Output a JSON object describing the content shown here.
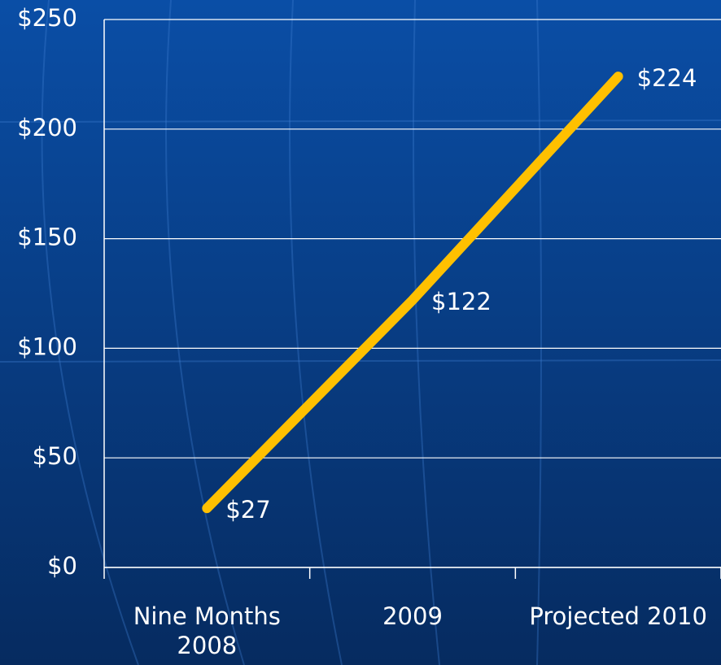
{
  "chart_data": {
    "type": "line",
    "categories": [
      "Nine Months 2008",
      "2009",
      "Projected 2010"
    ],
    "values": [
      27,
      122,
      224
    ],
    "value_labels": [
      "$27",
      "$122",
      "$224"
    ],
    "color": "#ffc000",
    "ylim": [
      0,
      250
    ],
    "yticks": [
      {
        "value": 0,
        "label": "$0"
      },
      {
        "value": 50,
        "label": "$50"
      },
      {
        "value": 100,
        "label": "$100"
      },
      {
        "value": 150,
        "label": "$150"
      },
      {
        "value": 200,
        "label": "$200"
      },
      {
        "value": 250,
        "label": "$250"
      }
    ],
    "grid": true
  }
}
